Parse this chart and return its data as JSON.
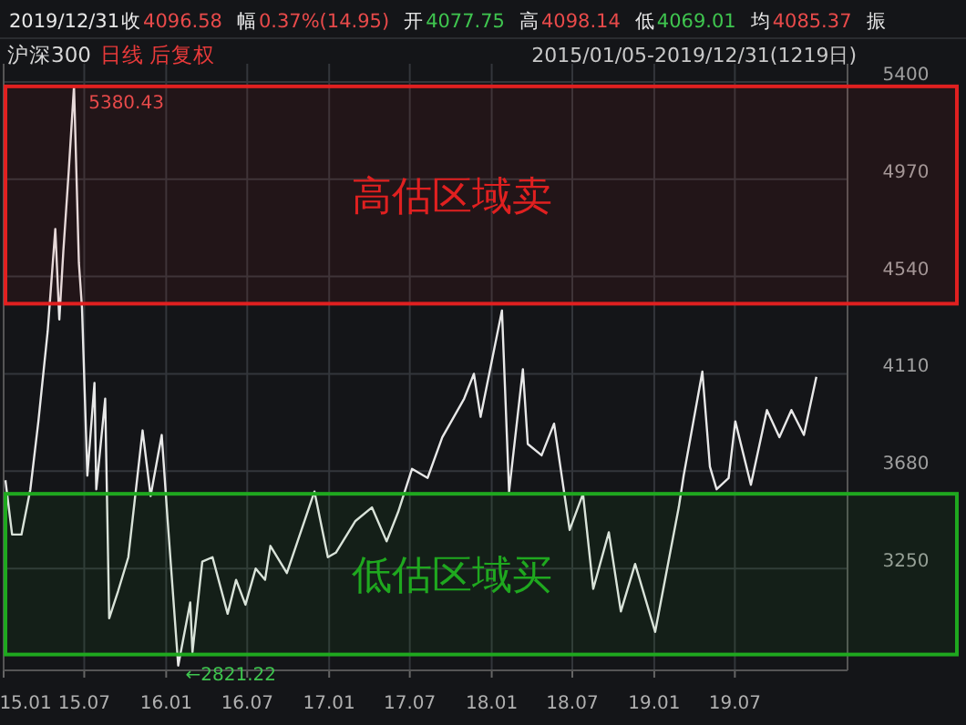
{
  "chart_data": {
    "type": "line",
    "title": "沪深300",
    "annotations": [
      "2019/12/31",
      "收",
      "4096.58",
      "幅",
      "0.37%(14.95)",
      "开",
      "4077.75",
      "高",
      "4098.14",
      "低",
      "4069.01",
      "均",
      "4085.37",
      "振",
      "日线",
      "后复权",
      "2015/01/05-2019/12/31(1219日)",
      {
        "text": "5380.43",
        "x": "2015-06-08",
        "y": 5380.43
      },
      {
        "text": "←2821.22",
        "x": "2016-01-28",
        "y": 2821.22
      }
    ],
    "x": [
      "2015-01-05",
      "2015-01-20",
      "2015-02-10",
      "2015-03-02",
      "2015-03-20",
      "2015-04-10",
      "2015-04-27",
      "2015-05-06",
      "2015-05-15",
      "2015-05-27",
      "2015-06-08",
      "2015-06-19",
      "2015-06-26",
      "2015-07-08",
      "2015-07-24",
      "2015-07-28",
      "2015-08-17",
      "2015-08-26",
      "2015-09-15",
      "2015-10-08",
      "2015-11-09",
      "2015-11-27",
      "2015-12-22",
      "2016-01-04",
      "2016-01-28",
      "2016-02-24",
      "2016-02-29",
      "2016-03-22",
      "2016-04-14",
      "2016-05-18",
      "2016-06-06",
      "2016-06-27",
      "2016-07-20",
      "2016-08-10",
      "2016-08-22",
      "2016-09-28",
      "2016-11-29",
      "2016-12-29",
      "2017-01-16",
      "2017-03-01",
      "2017-04-07",
      "2017-05-10",
      "2017-06-05",
      "2017-07-06",
      "2017-08-10",
      "2017-09-12",
      "2017-10-31",
      "2017-11-22",
      "2017-12-07",
      "2018-01-24",
      "2018-02-09",
      "2018-03-12",
      "2018-03-23",
      "2018-04-23",
      "2018-05-21",
      "2018-06-25",
      "2018-07-25",
      "2018-08-17",
      "2018-09-21",
      "2018-10-18",
      "2018-11-19",
      "2019-01-03",
      "2019-02-25",
      "2019-03-08",
      "2019-04-19",
      "2019-05-06",
      "2019-05-21",
      "2019-06-17",
      "2019-07-02",
      "2019-08-06",
      "2019-09-11",
      "2019-10-09",
      "2019-11-05",
      "2019-12-03",
      "2019-12-31"
    ],
    "series": [
      {
        "color": "#e8e8e8",
        "values": [
          3640,
          3400,
          3400,
          3600,
          3900,
          4300,
          4750,
          4350,
          4650,
          5000,
          5380.43,
          4600,
          4400,
          3660,
          4070,
          3600,
          4000,
          3030,
          3150,
          3300,
          3860,
          3570,
          3840,
          3470,
          2821.22,
          3100,
          2880,
          3280,
          3300,
          3050,
          3200,
          3090,
          3250,
          3200,
          3350,
          3230,
          3590,
          3300,
          3320,
          3460,
          3520,
          3370,
          3500,
          3690,
          3650,
          3830,
          4000,
          4110,
          3920,
          4390,
          3590,
          4130,
          3800,
          3750,
          3890,
          3420,
          3580,
          3160,
          3410,
          3060,
          3270,
          2970,
          3520,
          3660,
          4120,
          3700,
          3600,
          3650,
          3900,
          3620,
          3950,
          3830,
          3950,
          3840,
          4096.58
        ]
      }
    ],
    "xlim": [
      "2015-01-01",
      "2020-03-10"
    ],
    "xticks": [
      {
        "value": "2015-01-01",
        "label": "15.01"
      },
      {
        "value": "2015-07-01",
        "label": "15.07"
      },
      {
        "value": "2016-01-01",
        "label": "16.01"
      },
      {
        "value": "2016-07-01",
        "label": "16.07"
      },
      {
        "value": "2017-01-01",
        "label": "17.01"
      },
      {
        "value": "2017-07-01",
        "label": "17.07"
      },
      {
        "value": "2018-01-01",
        "label": "18.01"
      },
      {
        "value": "2018-07-01",
        "label": "18.07"
      },
      {
        "value": "2019-01-01",
        "label": "19.01"
      },
      {
        "value": "2019-07-01",
        "label": "19.07"
      }
    ],
    "ylim": [
      2800,
      5480
    ],
    "yticks": [
      3250,
      3680,
      4110,
      4540,
      4970,
      5400
    ],
    "grid": true,
    "bands": [
      {
        "axis": "y",
        "from": 4420,
        "to": 5380,
        "label": "高估区域卖",
        "color": "#e02020"
      },
      {
        "axis": "y",
        "from": 2870,
        "to": 3580,
        "label": "低估区域买",
        "color": "#1fa81f"
      }
    ]
  }
}
